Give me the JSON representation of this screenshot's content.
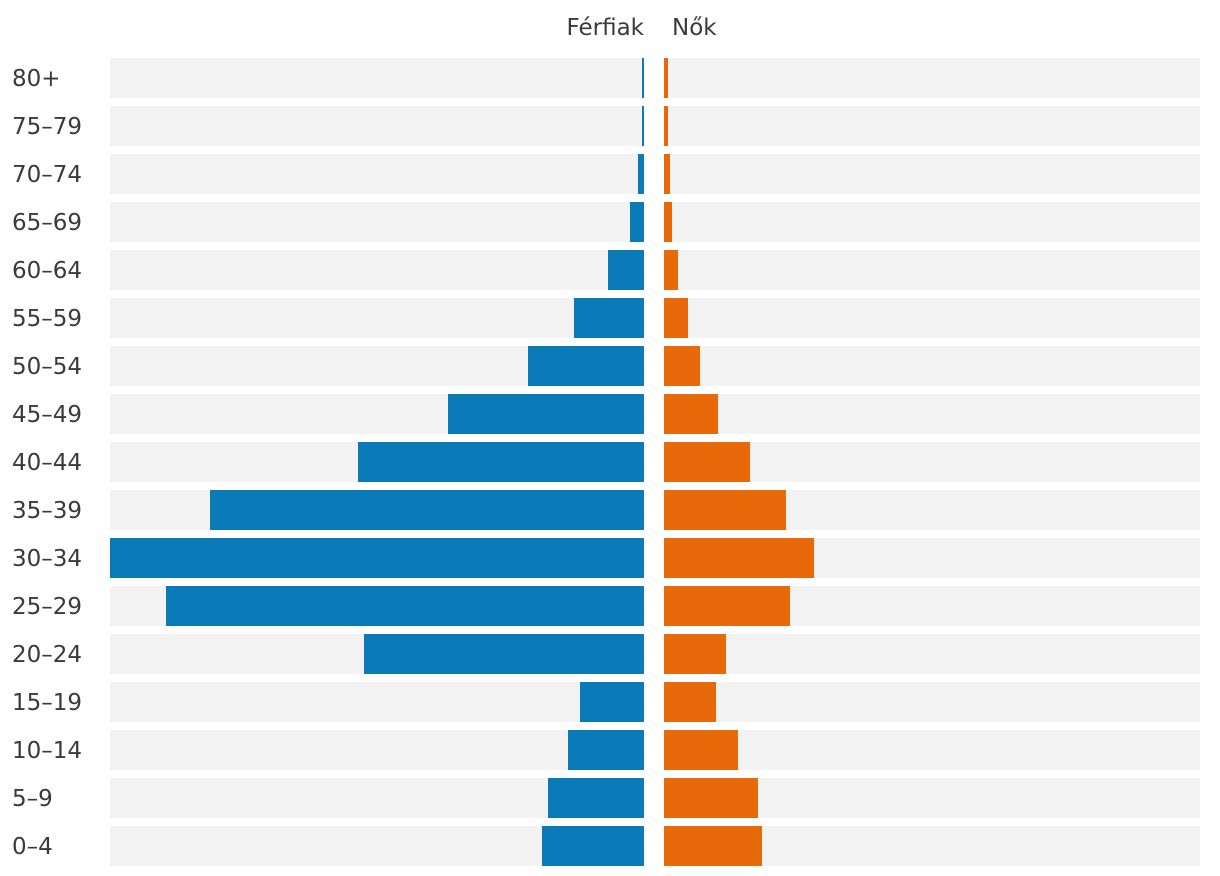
{
  "chart_data": {
    "type": "bar",
    "orientation": "horizontal-population-pyramid",
    "categories": [
      "80+",
      "75–79",
      "70–74",
      "65–69",
      "60–64",
      "55–59",
      "50–54",
      "45–49",
      "40–44",
      "35–39",
      "30–34",
      "25–29",
      "20–24",
      "15–19",
      "10–14",
      "5–9",
      "0–4"
    ],
    "series": [
      {
        "name": "Férfiak",
        "color": "#0a7ab8",
        "values": [
          0.1,
          0.1,
          0.3,
          0.7,
          1.8,
          3.5,
          5.8,
          9.8,
          14.3,
          21.7,
          26.7,
          23.9,
          14.0,
          3.2,
          3.8,
          4.8,
          5.1
        ]
      },
      {
        "name": "Nők",
        "color": "#e8690a",
        "values": [
          0.2,
          0.2,
          0.3,
          0.4,
          0.7,
          1.2,
          1.8,
          2.7,
          4.3,
          6.1,
          7.5,
          6.3,
          3.1,
          2.6,
          3.7,
          4.7,
          4.9
        ]
      }
    ],
    "xlim": [
      0,
      26.7
    ],
    "background_band_color": "#f3f3f3",
    "legend": [
      "Férfiak",
      "Nők"
    ],
    "legend_position": "top-center",
    "title": "",
    "xlabel": "",
    "ylabel": ""
  }
}
